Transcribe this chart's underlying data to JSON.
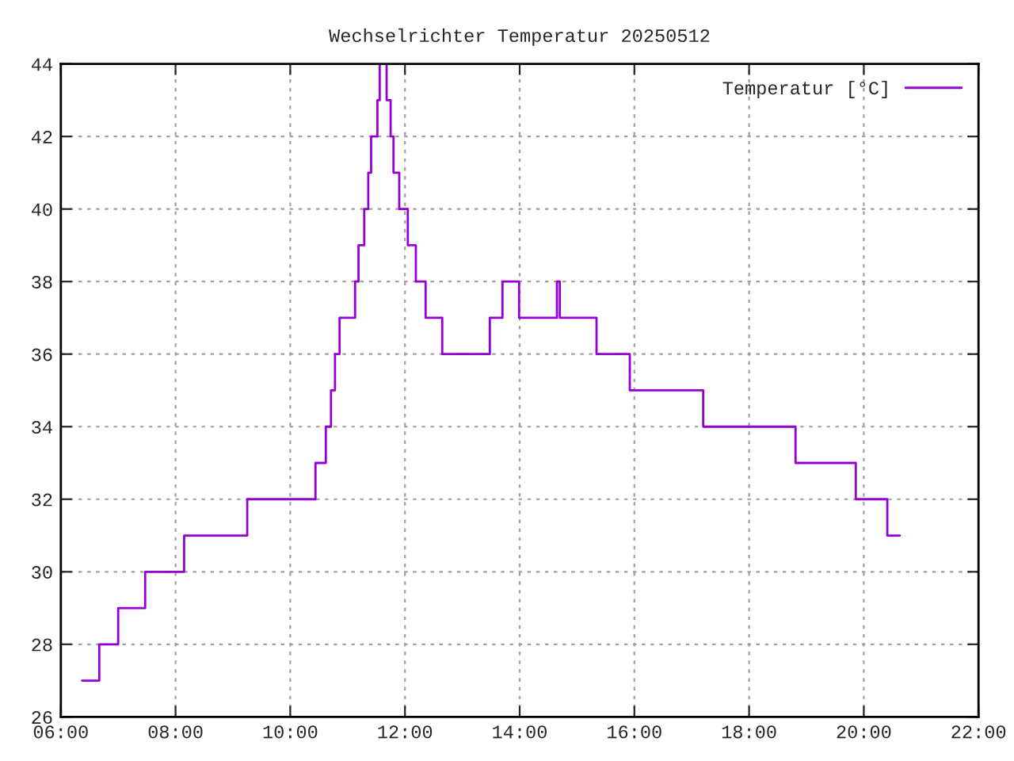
{
  "chart_data": {
    "type": "step",
    "title": "Wechselrichter Temperatur 20250512",
    "series": [
      {
        "name": "Temperatur [°C]",
        "color": "#9400d3",
        "x": [
          6.37,
          6.67,
          7.0,
          7.47,
          8.15,
          9.25,
          10.44,
          10.62,
          10.71,
          10.78,
          10.86,
          11.13,
          11.19,
          11.29,
          11.36,
          11.41,
          11.52,
          11.56,
          11.68,
          11.75,
          11.8,
          11.9,
          12.05,
          12.19,
          12.36,
          12.65,
          13.48,
          13.7,
          13.99,
          14.65,
          14.7,
          15.34,
          15.92,
          17.2,
          18.81,
          19.86,
          20.41,
          20.63
        ],
        "values": [
          27,
          28,
          29,
          30,
          31,
          32,
          33,
          34,
          35,
          36,
          37,
          38,
          39,
          40,
          41,
          42,
          43,
          44,
          43,
          42,
          41,
          40,
          39,
          38,
          37,
          36,
          37,
          38,
          37,
          38,
          37,
          36,
          35,
          34,
          33,
          32,
          31,
          31
        ]
      }
    ],
    "xlim": [
      6,
      22
    ],
    "xticks": [
      {
        "value": 6,
        "label": "06:00"
      },
      {
        "value": 8,
        "label": "08:00"
      },
      {
        "value": 10,
        "label": "10:00"
      },
      {
        "value": 12,
        "label": "12:00"
      },
      {
        "value": 14,
        "label": "14:00"
      },
      {
        "value": 16,
        "label": "16:00"
      },
      {
        "value": 18,
        "label": "18:00"
      },
      {
        "value": 20,
        "label": "20:00"
      },
      {
        "value": 22,
        "label": "22:00"
      }
    ],
    "ylim": [
      26,
      44
    ],
    "yticks": [
      26,
      28,
      30,
      32,
      34,
      36,
      38,
      40,
      42,
      44
    ],
    "grid": true,
    "legend": "top right",
    "line_style": "solid",
    "marker": "none"
  }
}
